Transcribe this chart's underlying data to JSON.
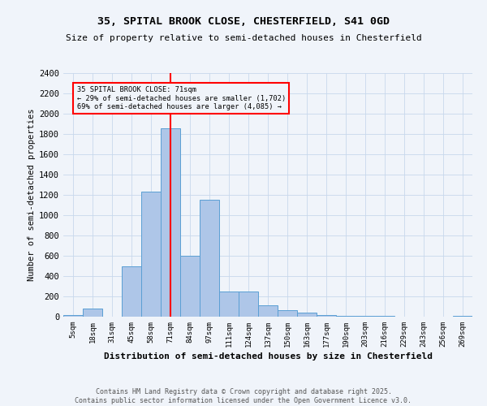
{
  "title_line1": "35, SPITAL BROOK CLOSE, CHESTERFIELD, S41 0GD",
  "title_line2": "Size of property relative to semi-detached houses in Chesterfield",
  "xlabel": "Distribution of semi-detached houses by size in Chesterfield",
  "ylabel": "Number of semi-detached properties",
  "categories": [
    "5sqm",
    "18sqm",
    "31sqm",
    "45sqm",
    "58sqm",
    "71sqm",
    "84sqm",
    "97sqm",
    "111sqm",
    "124sqm",
    "137sqm",
    "150sqm",
    "163sqm",
    "177sqm",
    "190sqm",
    "203sqm",
    "216sqm",
    "229sqm",
    "243sqm",
    "256sqm",
    "269sqm"
  ],
  "values": [
    15,
    80,
    0,
    500,
    1230,
    1860,
    600,
    1150,
    245,
    250,
    115,
    65,
    40,
    20,
    10,
    5,
    5,
    2,
    2,
    2,
    5
  ],
  "bar_color": "#aec6e8",
  "bar_edge_color": "#5a9fd4",
  "ref_line_idx": 5,
  "ref_line_color": "red",
  "annotation_title": "35 SPITAL BROOK CLOSE: 71sqm",
  "annotation_line2": "← 29% of semi-detached houses are smaller (1,702)",
  "annotation_line3": "69% of semi-detached houses are larger (4,085) →",
  "annotation_box_color": "red",
  "ylim": [
    0,
    2400
  ],
  "yticks": [
    0,
    200,
    400,
    600,
    800,
    1000,
    1200,
    1400,
    1600,
    1800,
    2000,
    2200,
    2400
  ],
  "footnote": "Contains HM Land Registry data © Crown copyright and database right 2025.\nContains public sector information licensed under the Open Government Licence v3.0.",
  "bg_color": "#f0f4fa",
  "grid_color": "#c8d8ec"
}
